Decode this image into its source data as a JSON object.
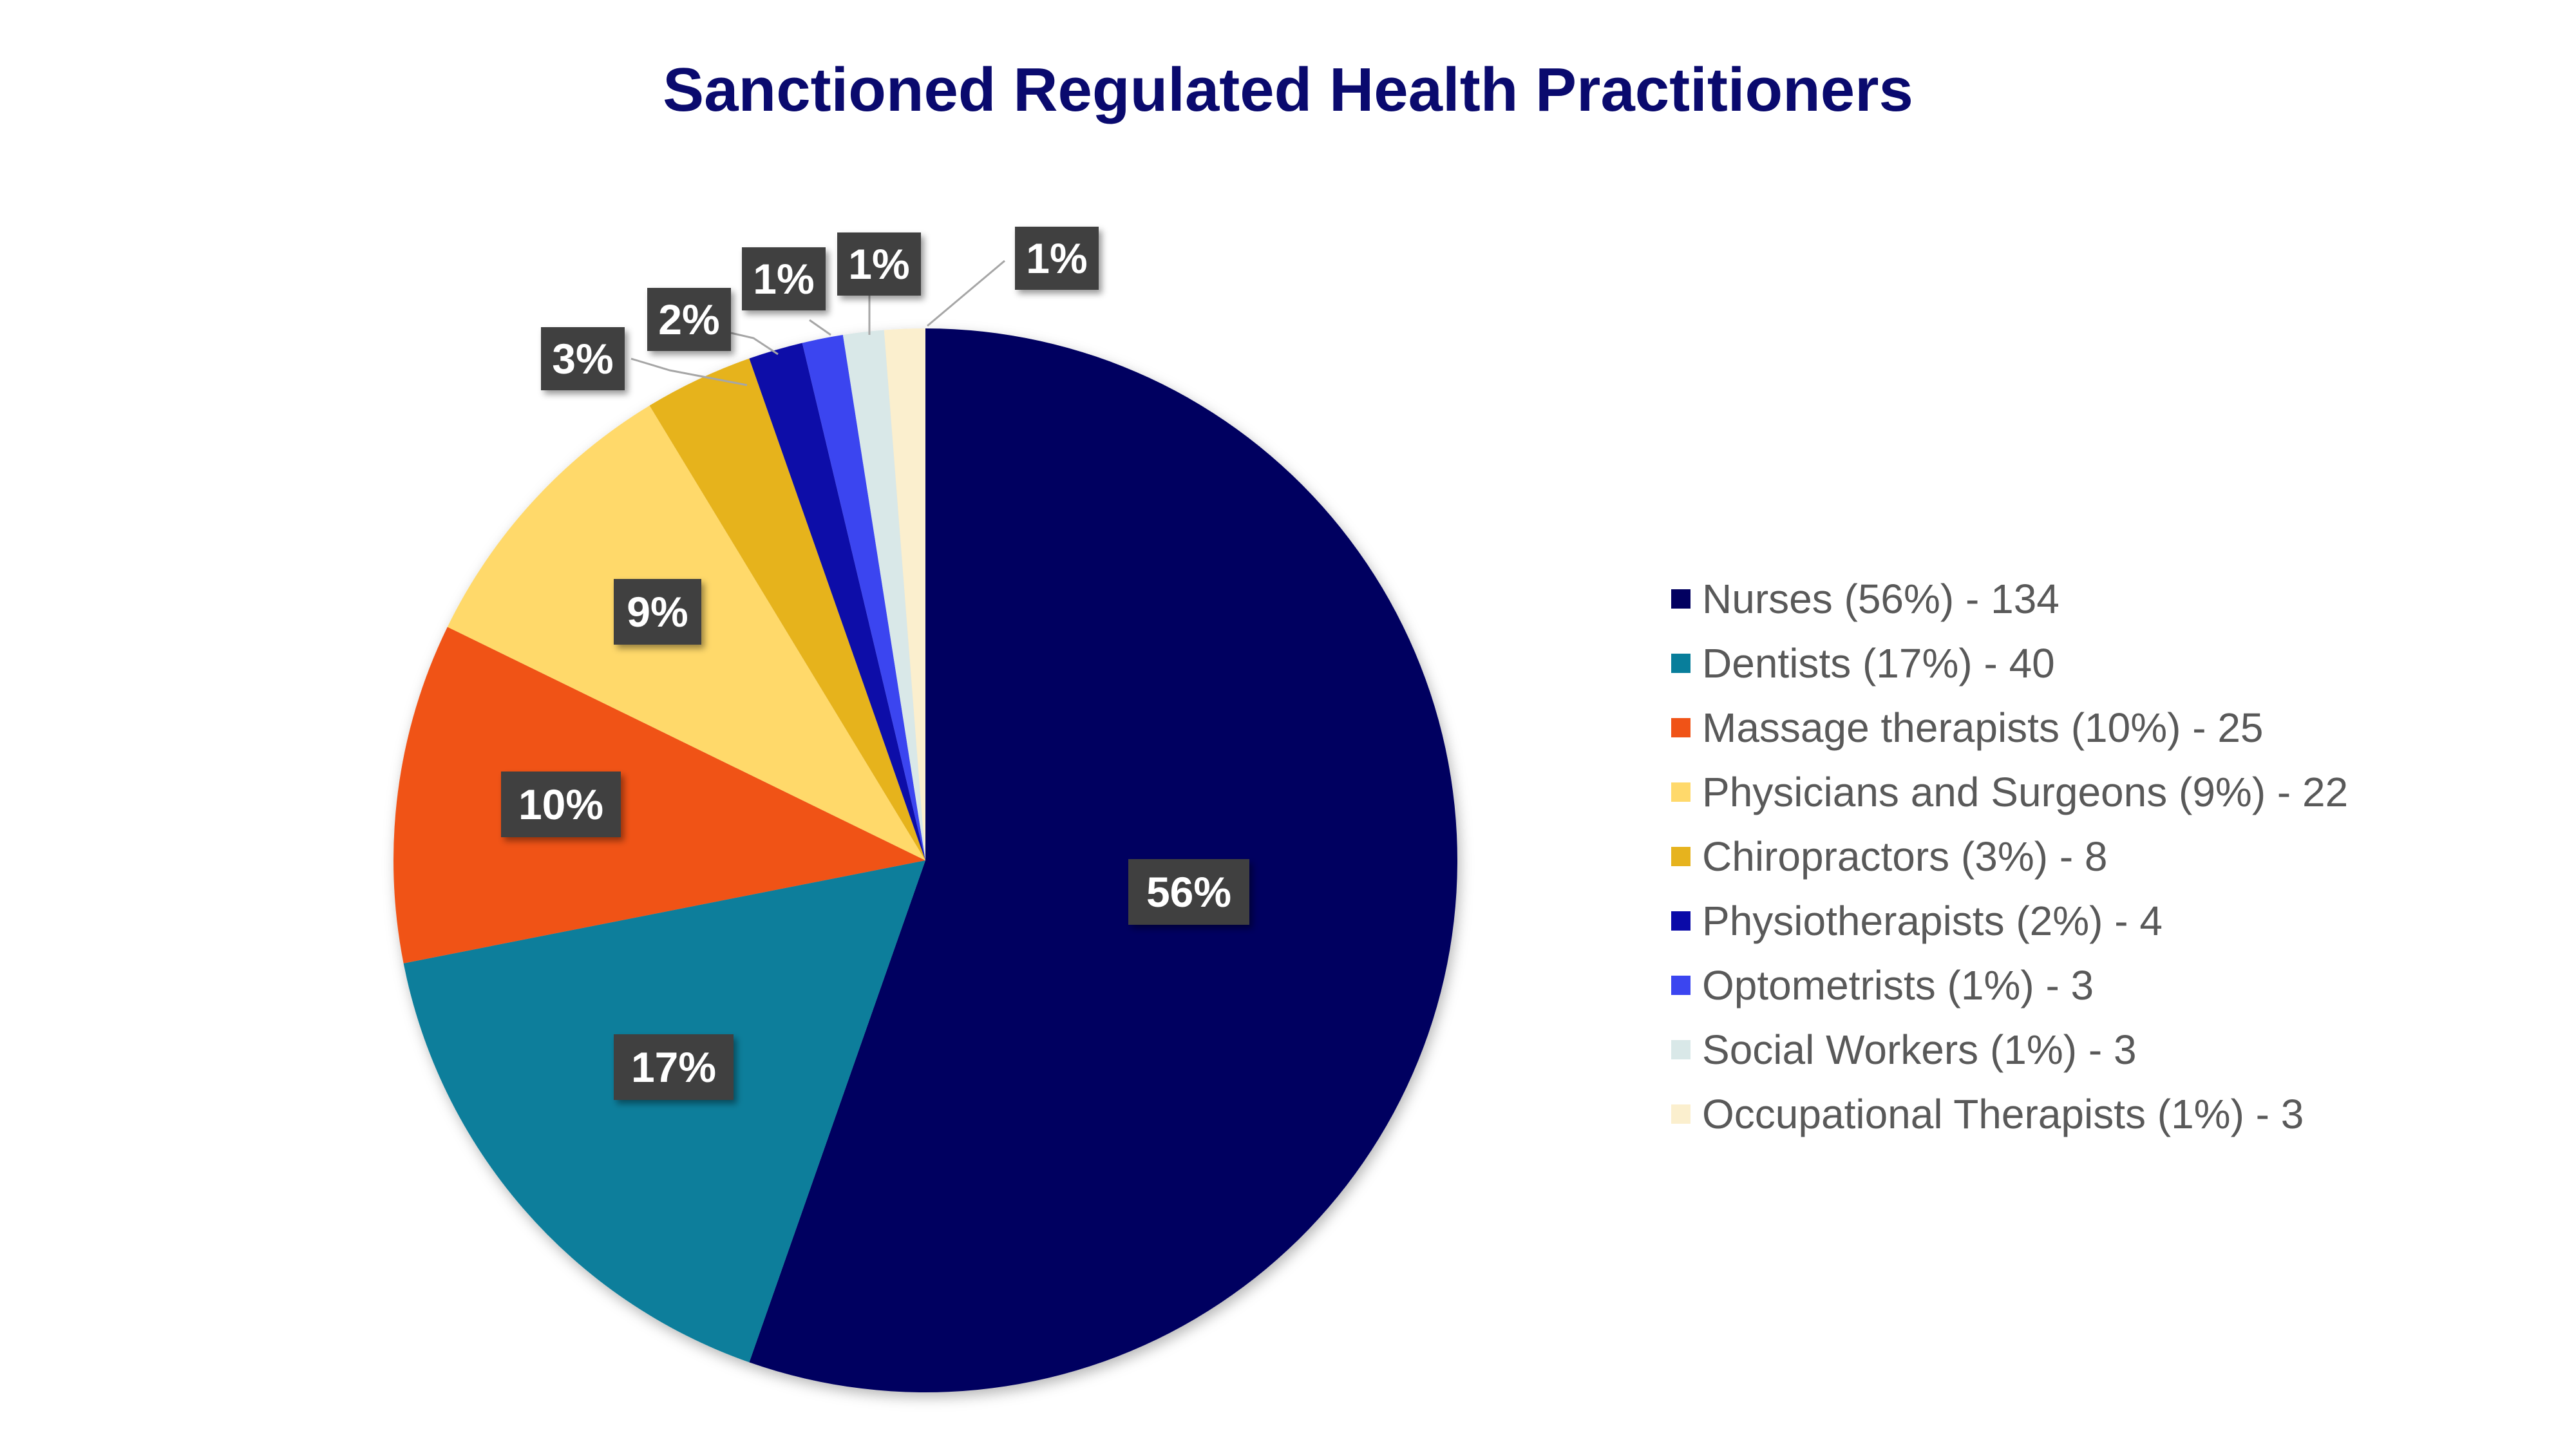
{
  "chart_data": {
    "type": "pie",
    "title": "Sanctioned Regulated Health Practitioners",
    "title_color": "#0A0A6E",
    "label_box_color": "#404040",
    "label_text_color": "#FFFFFF",
    "legend_text_color": "#595959",
    "legend_position": "right",
    "slices": [
      {
        "category": "Nurses",
        "value": 134,
        "percent_label": "56%",
        "legend_label": "Nurses (56%) - 134",
        "color": "#020060"
      },
      {
        "category": "Dentists",
        "value": 40,
        "percent_label": "17%",
        "legend_label": "Dentists (17%) - 40",
        "color": "#087E9B"
      },
      {
        "category": "Massage therapists",
        "value": 25,
        "percent_label": "10%",
        "legend_label": "Massage therapists (10%) - 25",
        "color": "#F05317"
      },
      {
        "category": "Physicians and Surgeons",
        "value": 22,
        "percent_label": "9%",
        "legend_label": "Physicians and Surgeons (9%) - 22",
        "color": "#FFD96B"
      },
      {
        "category": "Chiropractors",
        "value": 8,
        "percent_label": "3%",
        "legend_label": "Chiropractors (3%) - 8",
        "color": "#E6B31E"
      },
      {
        "category": "Physiotherapists",
        "value": 4,
        "percent_label": "2%",
        "legend_label": "Physiotherapists (2%) - 4",
        "color": "#0A0AA8"
      },
      {
        "category": "Optometrists",
        "value": 3,
        "percent_label": "1%",
        "legend_label": "Optometrists (1%) - 3",
        "color": "#3B45F0"
      },
      {
        "category": "Social Workers",
        "value": 3,
        "percent_label": "1%",
        "legend_label": "Social Workers (1%) - 3",
        "color": "#D9E8E8"
      },
      {
        "category": "Occupational Therapists",
        "value": 3,
        "percent_label": "1%",
        "legend_label": "Occupational Therapists (1%) - 3",
        "color": "#FBEFCE"
      }
    ]
  }
}
